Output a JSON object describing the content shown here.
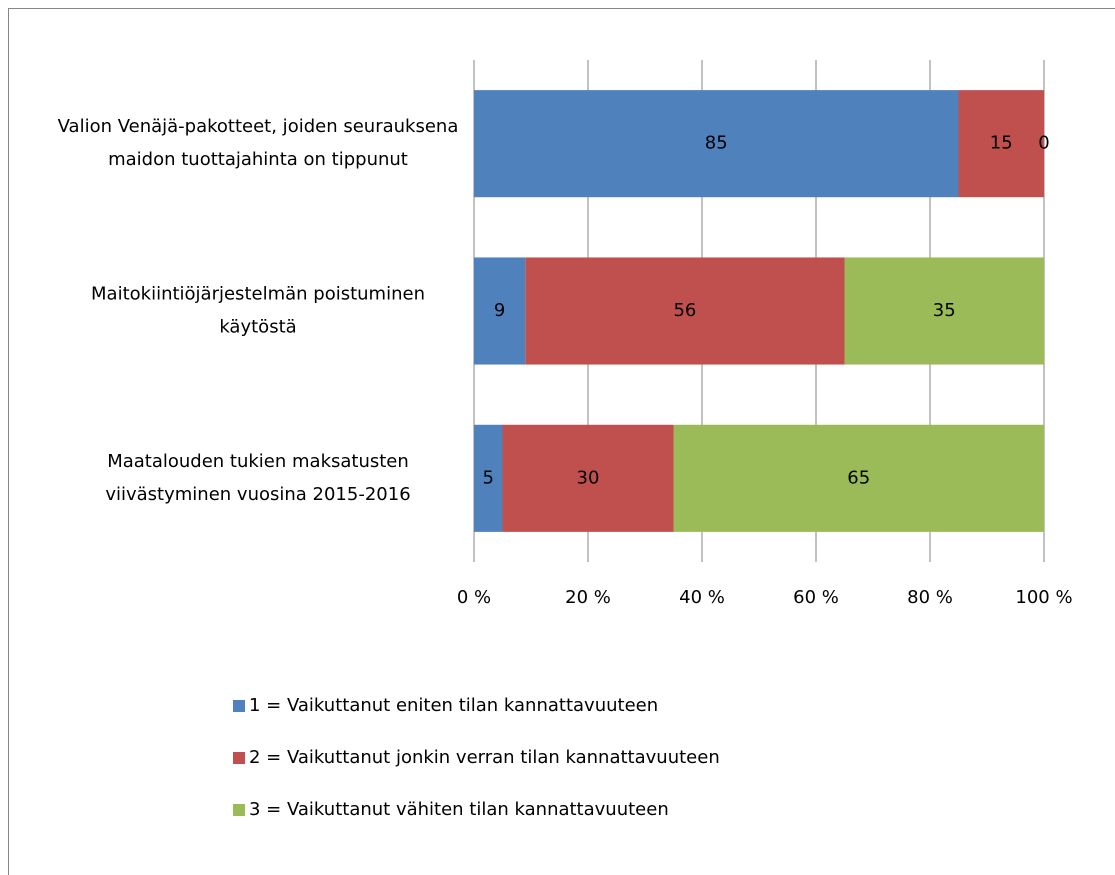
{
  "chart_data": {
    "type": "stacked_barh",
    "categories": [
      "Valion Venäjä-pakotteet, joiden seurauksena maidon tuottajahinta on tippunut",
      "Maitokiintiöjärjestelmän poistuminen käytöstä",
      "Maatalouden tukien maksatusten viivästyminen vuosina 2015-2016"
    ],
    "series": [
      {
        "name": "1 = Vaikuttanut eniten tilan kannattavuuteen",
        "color": "#4f81bd",
        "values": [
          85,
          9,
          5
        ]
      },
      {
        "name": "2 = Vaikuttanut jonkin verran tilan kannattavuuteen",
        "color": "#c0504d",
        "values": [
          15,
          56,
          30
        ]
      },
      {
        "name": "3 = Vaikuttanut vähiten tilan kannattavuuteen",
        "color": "#9bbb59",
        "values": [
          0,
          35,
          65
        ]
      }
    ],
    "xlim": [
      0,
      100
    ],
    "xticks": [
      {
        "value": 0,
        "label": "0 %"
      },
      {
        "value": 20,
        "label": "20 %"
      },
      {
        "value": 40,
        "label": "40 %"
      },
      {
        "value": 60,
        "label": "60 %"
      },
      {
        "value": 80,
        "label": "80 %"
      },
      {
        "value": 100,
        "label": "100 %"
      }
    ],
    "grid": true,
    "legend": "bottom"
  }
}
